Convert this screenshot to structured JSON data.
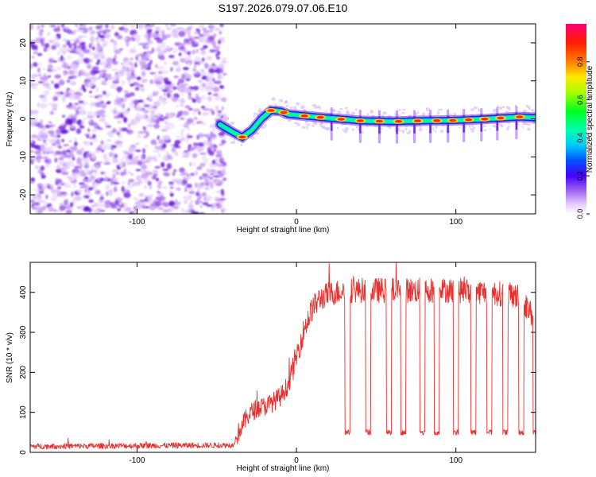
{
  "title": "S197.2026.079.07.06.E10",
  "chart_data": [
    {
      "type": "heatmap",
      "xlabel": "Height of straight line (km)",
      "ylabel": "Frequency (Hz)",
      "xlim": [
        -167,
        150
      ],
      "ylim": [
        -25,
        25
      ],
      "xticks": [
        -100,
        0,
        100
      ],
      "yticks": [
        -20,
        -10,
        0,
        10,
        20
      ],
      "noise_region_x": [
        -167,
        -48
      ],
      "ridge": {
        "x": [
          -48,
          -40,
          -34,
          -28,
          -22,
          -16,
          -10,
          -5,
          0,
          10,
          20,
          40,
          60,
          80,
          100,
          120,
          140,
          150
        ],
        "y": [
          -1.5,
          -3.5,
          -4.8,
          -3.0,
          0.0,
          2.2,
          2.0,
          1.2,
          1.0,
          0.6,
          0.2,
          -0.5,
          -0.7,
          -0.5,
          -0.4,
          0.0,
          0.5,
          0.3
        ]
      },
      "spike_x": [
        22,
        40,
        52,
        63,
        74,
        84,
        95,
        105,
        116,
        126,
        138
      ]
    },
    {
      "type": "line",
      "xlabel": "Height of straight line (km)",
      "ylabel": "SNR (10 * v/v)",
      "xlim": [
        -167,
        150
      ],
      "ylim": [
        0,
        475
      ],
      "xticks": [
        -100,
        0,
        100
      ],
      "yticks": [
        0,
        100,
        200,
        300,
        400
      ],
      "series": [
        {
          "name": "SNR",
          "color": "#e8302e",
          "x": [
            -167,
            -40,
            -35,
            -30,
            -25,
            -20,
            -15,
            -10,
            -5,
            0,
            5,
            10,
            15,
            20,
            25,
            30,
            40,
            60,
            80,
            100,
            120,
            140,
            150
          ],
          "y": [
            15,
            18,
            60,
            95,
            110,
            115,
            125,
            140,
            170,
            240,
            310,
            360,
            385,
            395,
            400,
            405,
            405,
            405,
            405,
            405,
            400,
            390,
            330
          ]
        }
      ],
      "dip_x": [
        32,
        45,
        58,
        67,
        79,
        88,
        100,
        111,
        121,
        131,
        141,
        150
      ],
      "dip_level": 50
    }
  ],
  "colorbar": {
    "label": "Normalized spectral amplitude",
    "ticks": [
      "0.0",
      "0.2",
      "0.4",
      "0.6",
      "0.8"
    ],
    "tick_values": [
      0.0,
      0.2,
      0.4,
      0.6,
      0.8
    ],
    "range": [
      0,
      1
    ]
  }
}
